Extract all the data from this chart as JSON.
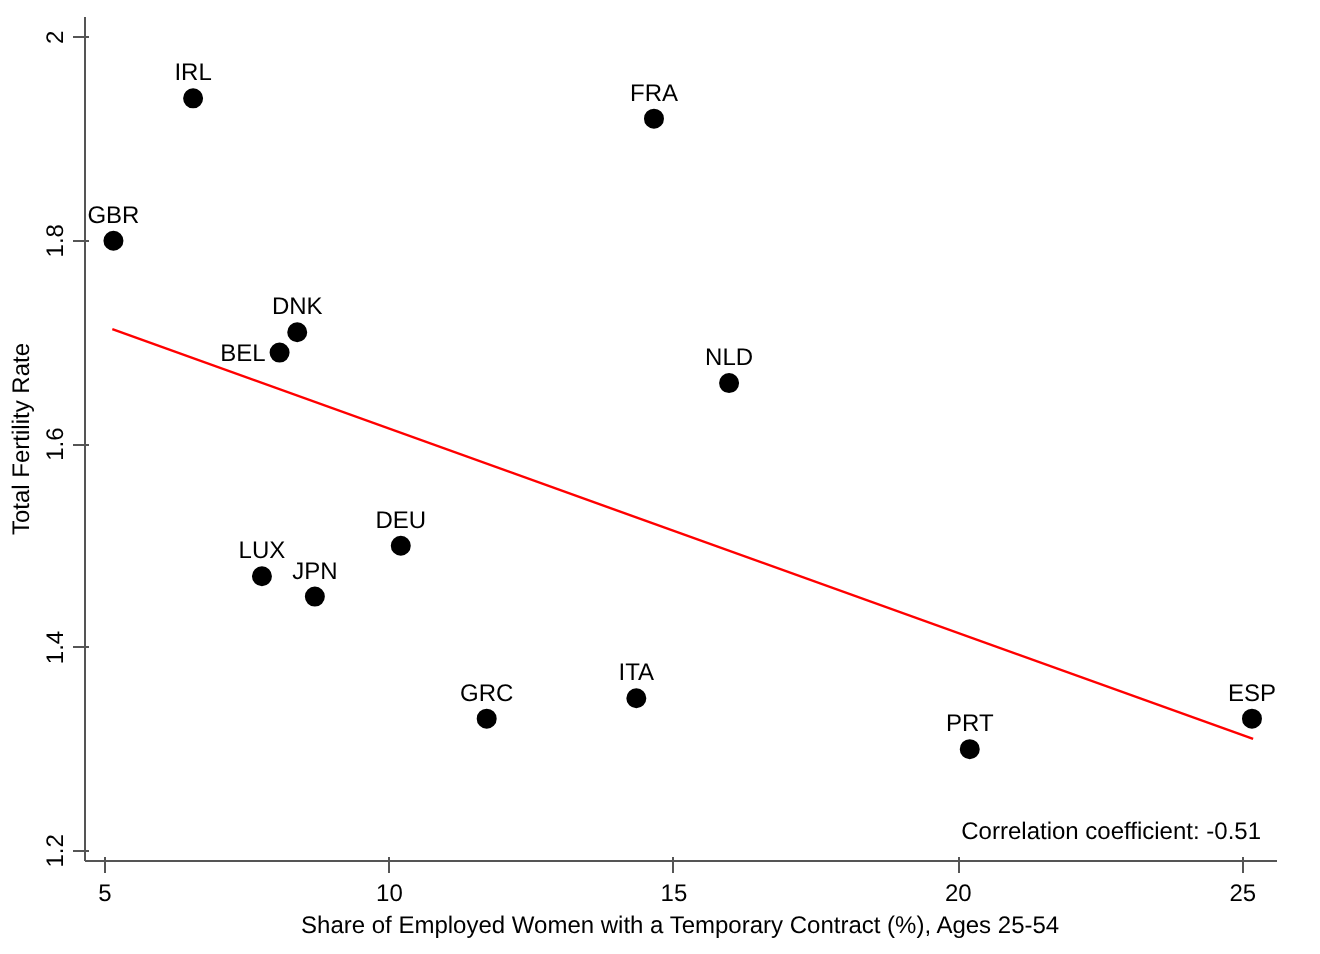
{
  "chart_data": {
    "type": "scatter",
    "xlabel": "Share of Employed Women with a Temporary Contract (%), Ages 25-54",
    "ylabel": "Total Fertility Rate",
    "xlim": [
      4.65,
      25.6
    ],
    "ylim": [
      1.19,
      2.02
    ],
    "xticks": [
      5,
      10,
      15,
      20,
      25
    ],
    "yticks": [
      1.2,
      1.4,
      1.6,
      1.8,
      2
    ],
    "grid": false,
    "series": [
      {
        "marker": "circle",
        "color": "#000000",
        "x": [
          6.55,
          14.65,
          5.15,
          8.38,
          8.07,
          15.97,
          10.2,
          7.76,
          8.69,
          11.71,
          14.34,
          20.2,
          25.16
        ],
        "values": [
          1.94,
          1.92,
          1.8,
          1.71,
          1.69,
          1.66,
          1.5,
          1.47,
          1.45,
          1.33,
          1.35,
          1.3,
          1.33
        ]
      },
      {
        "type": "line",
        "color": "#ff0000",
        "line_style": "solid",
        "x": [
          5.13,
          25.18
        ],
        "values": [
          1.713,
          1.31
        ]
      }
    ],
    "annotations": [
      {
        "text": "IRL",
        "x": 6.55,
        "y": 1.94
      },
      {
        "text": "FRA",
        "x": 14.65,
        "y": 1.92
      },
      {
        "text": "GBR",
        "x": 5.15,
        "y": 1.8
      },
      {
        "text": "DNK",
        "x": 8.38,
        "y": 1.71
      },
      {
        "text": "BEL",
        "x": 8.07,
        "y": 1.69
      },
      {
        "text": "NLD",
        "x": 15.97,
        "y": 1.66
      },
      {
        "text": "DEU",
        "x": 10.2,
        "y": 1.5
      },
      {
        "text": "LUX",
        "x": 7.76,
        "y": 1.47
      },
      {
        "text": "JPN",
        "x": 8.69,
        "y": 1.45
      },
      {
        "text": "GRC",
        "x": 11.71,
        "y": 1.33
      },
      {
        "text": "ITA",
        "x": 14.34,
        "y": 1.35
      },
      {
        "text": "PRT",
        "x": 20.2,
        "y": 1.3
      },
      {
        "text": "ESP",
        "x": 25.16,
        "y": 1.33
      },
      "Correlation coefficient: -0.51"
    ]
  }
}
